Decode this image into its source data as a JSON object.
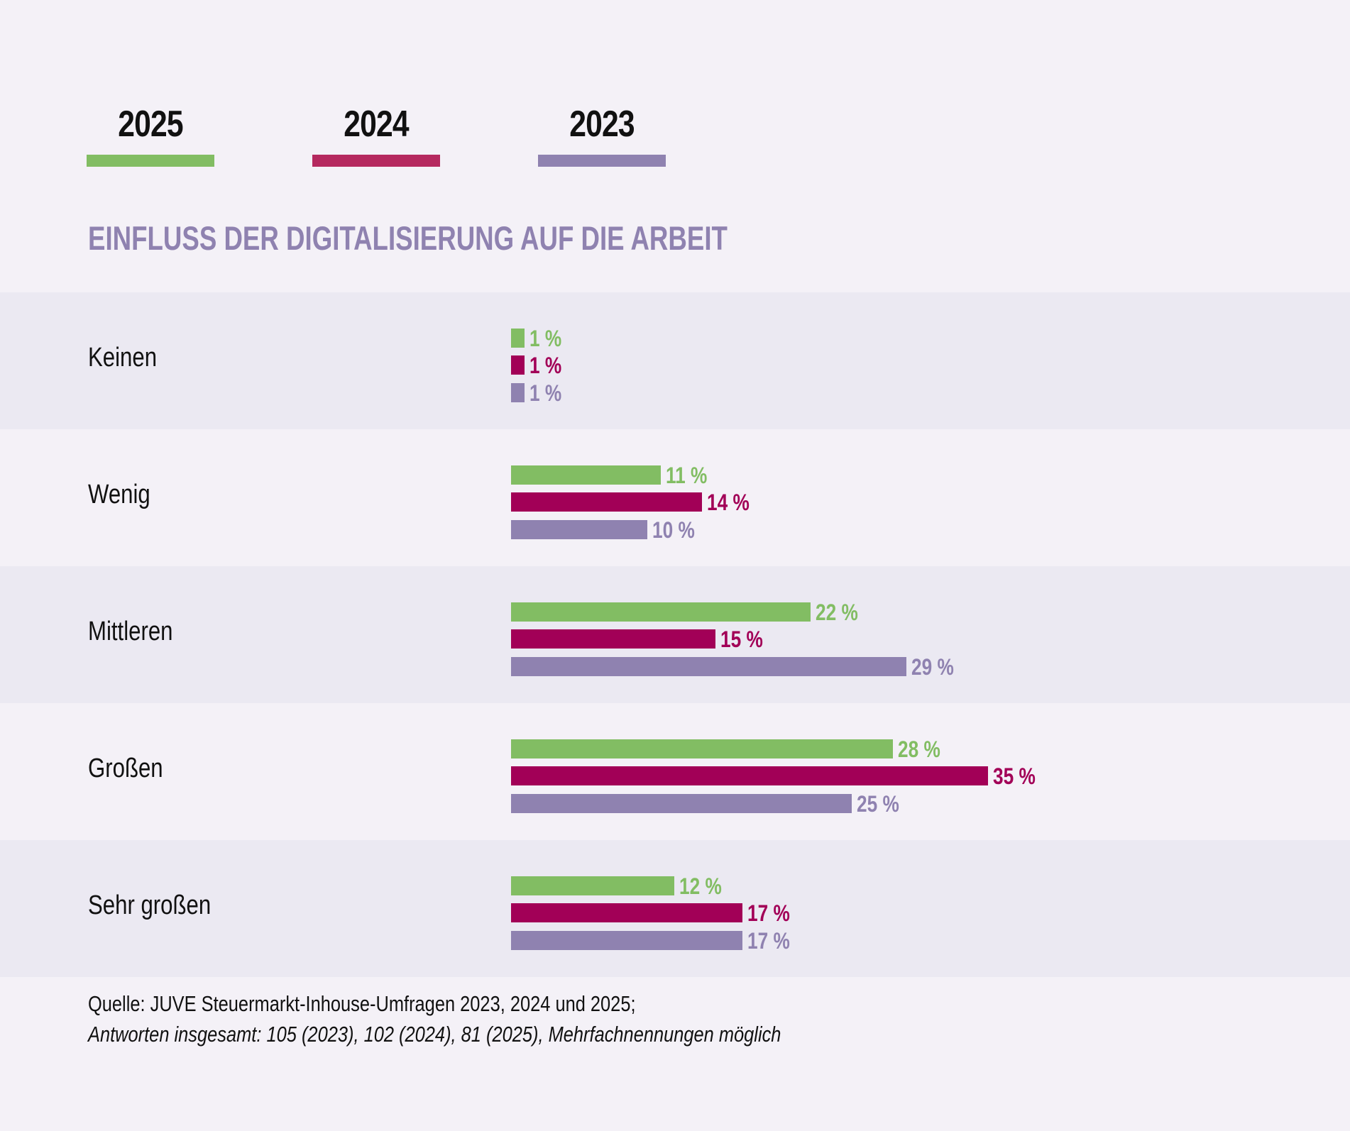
{
  "legend": [
    {
      "label": "2025",
      "color": "#82bd63"
    },
    {
      "label": "2024",
      "color": "#b5295f"
    },
    {
      "label": "2023",
      "color": "#8f82b0"
    }
  ],
  "chart_data": {
    "type": "bar",
    "orientation": "horizontal",
    "title": "EINFLUSS DER DIGITALISIERUNG AUF DIE ARBEIT",
    "categories": [
      "Keinen",
      "Wenig",
      "Mittleren",
      "Großen",
      "Sehr großen"
    ],
    "series": [
      {
        "name": "2025",
        "color": "#82bd63",
        "values": [
          1,
          11,
          22,
          28,
          12
        ],
        "labels": [
          "1 %",
          "11 %",
          "22 %",
          "28 %",
          "12 %"
        ]
      },
      {
        "name": "2024",
        "color": "#a20057",
        "values": [
          1,
          14,
          15,
          35,
          17
        ],
        "labels": [
          "1 %",
          "14 %",
          "15 %",
          "35 %",
          "17 %"
        ]
      },
      {
        "name": "2023",
        "color": "#8f82b0",
        "values": [
          1,
          10,
          29,
          25,
          17
        ],
        "labels": [
          "1 %",
          "10 %",
          "29 %",
          "25 %",
          "17 %"
        ]
      }
    ],
    "unit": "%",
    "xlim": [
      0,
      35
    ],
    "grid": false,
    "legend_position": "top-left"
  },
  "footer": {
    "source": "Quelle: JUVE Steuermarkt-Inhouse-Umfragen 2023, 2024 und 2025;",
    "note": "Antworten insgesamt: 105 (2023), 102 (2024), 81 (2025), Mehrfachnennungen möglich"
  }
}
